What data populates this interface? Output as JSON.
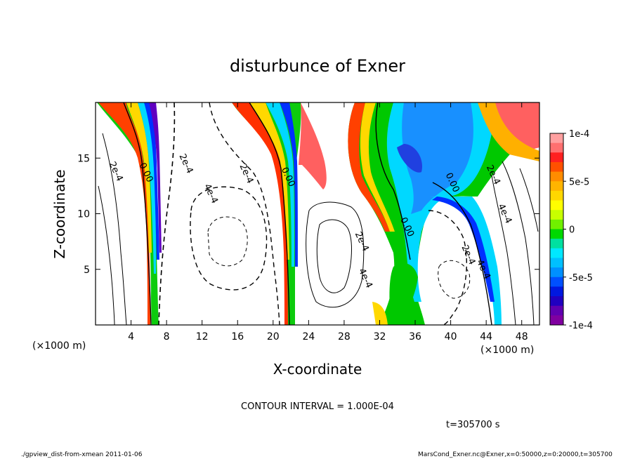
{
  "chart_data": {
    "type": "heatmap",
    "title": "disturbunce of Exner",
    "xlabel": "X-coordinate",
    "ylabel": "Z-coordinate",
    "x_unit_left": "(×1000 m)",
    "x_unit_right": "(×1000 m)",
    "xlim": [
      0,
      50
    ],
    "ylim": [
      0,
      20
    ],
    "x_ticks": [
      4,
      8,
      12,
      16,
      20,
      24,
      28,
      32,
      36,
      40,
      44,
      48
    ],
    "y_ticks": [
      5,
      10,
      15
    ],
    "colorbar": {
      "range": [
        -0.0001,
        0.0001
      ],
      "tick_values": [
        0.0001,
        5e-05,
        0,
        -5e-05,
        -0.0001
      ],
      "tick_labels": [
        "1e-4",
        "5e-5",
        "0",
        "-5e-5",
        "-1e-4"
      ]
    },
    "contour_labels": [
      {
        "text": "2e-4",
        "x": 2.3,
        "z": 13.8
      },
      {
        "text": "0.00",
        "x": 5.7,
        "z": 13.7
      },
      {
        "text": "2e-4",
        "x": 10.2,
        "z": 14.5
      },
      {
        "text": "4e-4",
        "x": 13.0,
        "z": 11.8
      },
      {
        "text": "2e-4",
        "x": 17.0,
        "z": 13.6
      },
      {
        "text": "0.00",
        "x": 21.7,
        "z": 13.3
      },
      {
        "text": "2e-4",
        "x": 30.0,
        "z": 7.5
      },
      {
        "text": "4e-4",
        "x": 30.4,
        "z": 4.2
      },
      {
        "text": "0.00",
        "x": 35.1,
        "z": 8.8
      },
      {
        "text": "0.00",
        "x": 40.2,
        "z": 12.8
      },
      {
        "text": "2e-4",
        "x": 44.8,
        "z": 13.5
      },
      {
        "text": "4e-4",
        "x": 46.1,
        "z": 10.0
      },
      {
        "text": "2e-4",
        "x": 42.0,
        "z": 6.3
      },
      {
        "text": "4e-4",
        "x": 43.7,
        "z": 5.0
      }
    ]
  },
  "contour_interval": "CONTOUR INTERVAL = 1.000E-04",
  "time_label": "t=305700 s",
  "footer_left": "./gpview_dist-from-xmean  2011-01-06",
  "footer_right": "MarsCond_Exner.nc@Exner,x=0:50000,z=0:20000,t=305700"
}
